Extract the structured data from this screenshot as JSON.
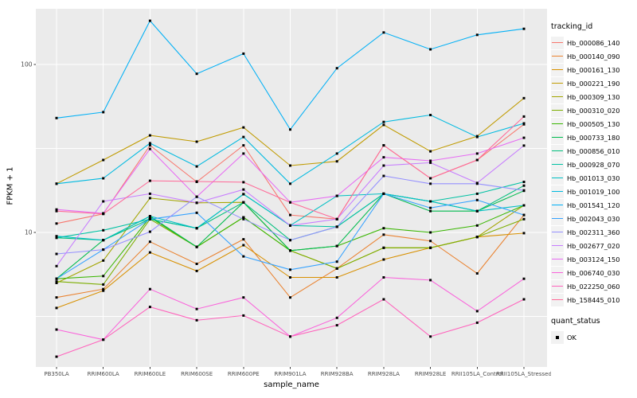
{
  "chart_data": {
    "type": "line",
    "title": "",
    "xlabel": "sample_name",
    "ylabel": "FPKM + 1",
    "y_scale": "log10",
    "ylim": [
      1.6,
      230
    ],
    "y_ticks": [
      100,
      10
    ],
    "y_minor_ticks": [
      31.62,
      3.162
    ],
    "grid": true,
    "legend_position": "right",
    "legend_title": "tracking_id",
    "point_legend": {
      "title": "quant_status",
      "label": "OK"
    },
    "x_categories": [
      "PB350LA",
      "RRIM600LA",
      "RRIM600LE",
      "RRIM600SE",
      "RRIM600PE",
      "RRIM901LA",
      "RRIM928BA",
      "RRIM928LA",
      "RRIM928LE",
      "RRII105LA_Control",
      "RRII105LA_Stressed"
    ],
    "series": [
      {
        "name": "Hb_000086_140",
        "color": "#F8766D",
        "values": [
          11.3,
          12.9,
          33,
          20,
          33,
          12.7,
          12.0,
          33,
          21,
          27,
          44
        ]
      },
      {
        "name": "Hb_000140_090",
        "color": "#EA8331",
        "values": [
          4.1,
          4.6,
          8.8,
          6.5,
          9.1,
          4.1,
          6.1,
          9.7,
          8.9,
          5.7,
          12.7
        ]
      },
      {
        "name": "Hb_000161_130",
        "color": "#D89000",
        "values": [
          3.55,
          4.5,
          7.6,
          5.9,
          8.4,
          5.4,
          5.4,
          6.9,
          8.1,
          9.4,
          9.9
        ]
      },
      {
        "name": "Hb_000221_190",
        "color": "#C09B00",
        "values": [
          19.5,
          27,
          37.8,
          34.7,
          42.2,
          25,
          26.5,
          43.7,
          30.4,
          37.4,
          63
        ]
      },
      {
        "name": "Hb_000309_130",
        "color": "#A3A500",
        "values": [
          5.0,
          6.8,
          16,
          15,
          15.1,
          7.8,
          6.1,
          8.1,
          8.1,
          9.4,
          14.5
        ]
      },
      {
        "name": "Hb_000310_020",
        "color": "#7CAE00",
        "values": [
          5.1,
          4.9,
          12,
          8.2,
          12.3,
          7.8,
          6.1,
          8.1,
          8.1,
          9.4,
          12
        ]
      },
      {
        "name": "Hb_000505_130",
        "color": "#39B600",
        "values": [
          5.3,
          5.5,
          12.3,
          8.2,
          12.3,
          7.8,
          8.3,
          10.6,
          10,
          11,
          14.5
        ]
      },
      {
        "name": "Hb_000733_180",
        "color": "#00BB4E",
        "values": [
          5.3,
          9.0,
          12.5,
          8.2,
          15.1,
          7.8,
          8.3,
          17,
          13.4,
          13.4,
          17.7
        ]
      },
      {
        "name": "Hb_000856_010",
        "color": "#00BF7D",
        "values": [
          9.3,
          9.0,
          12,
          10.6,
          15.1,
          9.0,
          10.8,
          17,
          15.3,
          13.4,
          19
        ]
      },
      {
        "name": "Hb_000928_070",
        "color": "#00C1A3",
        "values": [
          9.3,
          10.3,
          12,
          10.6,
          16.9,
          11,
          10.8,
          17,
          15.3,
          17,
          20
        ]
      },
      {
        "name": "Hb_001013_030",
        "color": "#00BFC4",
        "values": [
          9.5,
          9.0,
          12.5,
          10.6,
          16.9,
          11,
          16.5,
          17,
          15.3,
          13.4,
          14.5
        ]
      },
      {
        "name": "Hb_001019_100",
        "color": "#00BAE0",
        "values": [
          19.5,
          21,
          34,
          24.7,
          37,
          19.5,
          29.5,
          45.5,
          50,
          37,
          44.6
        ]
      },
      {
        "name": "Hb_001541_120",
        "color": "#00B0F6",
        "values": [
          48,
          52,
          182,
          88,
          116,
          41,
          95,
          155,
          123,
          150,
          163
        ]
      },
      {
        "name": "Hb_002043_030",
        "color": "#35A2FF",
        "values": [
          5.3,
          7.9,
          12,
          13.1,
          7.2,
          6.0,
          6.7,
          17,
          14,
          15.6,
          12.7
        ]
      },
      {
        "name": "Hb_002311_360",
        "color": "#9590FF",
        "values": [
          7.45,
          7.9,
          10.1,
          16.3,
          12,
          9.0,
          10.8,
          21.7,
          19.5,
          19.5,
          17.8
        ]
      },
      {
        "name": "Hb_002677_020",
        "color": "#C77CFF",
        "values": [
          6.3,
          15.3,
          17,
          15,
          18,
          11,
          12,
          25,
          26,
          19.7,
          32.9
        ]
      },
      {
        "name": "Hb_003124_150",
        "color": "#E76BF3",
        "values": [
          13.7,
          13,
          31.4,
          16.3,
          29.5,
          15.1,
          16.5,
          28,
          26.7,
          29.5,
          36.6
        ]
      },
      {
        "name": "Hb_006740_030",
        "color": "#FA62DB",
        "values": [
          2.64,
          2.3,
          4.6,
          3.5,
          4.1,
          2.4,
          3.1,
          5.4,
          5.2,
          3.4,
          5.3
        ]
      },
      {
        "name": "Hb_022250_060",
        "color": "#FF62BC",
        "values": [
          1.82,
          2.3,
          3.6,
          3.0,
          3.2,
          2.4,
          2.8,
          4.0,
          2.4,
          2.9,
          4.0
        ]
      },
      {
        "name": "Hb_158445_010",
        "color": "#FF6A98",
        "values": [
          13.4,
          12.9,
          20.3,
          20.1,
          19.9,
          15.1,
          12.0,
          33,
          21,
          27,
          49
        ]
      }
    ]
  },
  "theme": {
    "panel_bg": "#EBEBEB",
    "grid_color": "#FFFFFF",
    "tick_color": "#333333",
    "tick_label_color": "#4D4D4D",
    "point_color": "#000000",
    "legend_key_bg": "#F2F2F2"
  }
}
